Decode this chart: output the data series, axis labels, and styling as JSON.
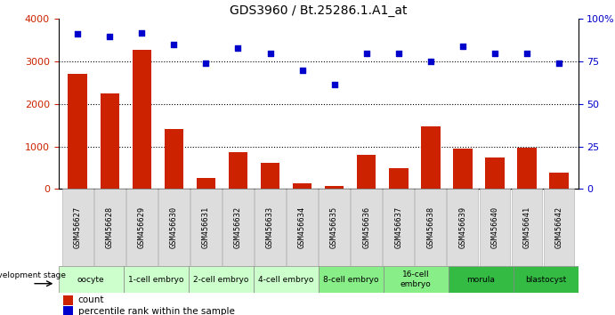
{
  "title": "GDS3960 / Bt.25286.1.A1_at",
  "samples": [
    "GSM456627",
    "GSM456628",
    "GSM456629",
    "GSM456630",
    "GSM456631",
    "GSM456632",
    "GSM456633",
    "GSM456634",
    "GSM456635",
    "GSM456636",
    "GSM456637",
    "GSM456638",
    "GSM456639",
    "GSM456640",
    "GSM456641",
    "GSM456642"
  ],
  "counts": [
    2700,
    2250,
    3280,
    1420,
    260,
    870,
    620,
    140,
    80,
    810,
    490,
    1480,
    940,
    750,
    980,
    390
  ],
  "percentile_vals": [
    91.0,
    89.5,
    91.5,
    85.0,
    74.0,
    83.0,
    79.5,
    70.0,
    61.5,
    79.5,
    79.5,
    75.0,
    84.0,
    79.5,
    79.5,
    74.0
  ],
  "stages": [
    {
      "label": "oocyte",
      "cols": 2,
      "color": "#ccffcc"
    },
    {
      "label": "1-cell embryo",
      "cols": 2,
      "color": "#ccffcc"
    },
    {
      "label": "2-cell embryo",
      "cols": 2,
      "color": "#ccffcc"
    },
    {
      "label": "4-cell embryo",
      "cols": 2,
      "color": "#ccffcc"
    },
    {
      "label": "8-cell embryo",
      "cols": 2,
      "color": "#88ee88"
    },
    {
      "label": "16-cell\nembryo",
      "cols": 2,
      "color": "#88ee88"
    },
    {
      "label": "morula",
      "cols": 2,
      "color": "#33bb44"
    },
    {
      "label": "blastocyst",
      "cols": 2,
      "color": "#33bb44"
    }
  ],
  "bar_color": "#cc2200",
  "dot_color": "#0000cc",
  "ylim_left": [
    0,
    4000
  ],
  "ylim_right": [
    0,
    100
  ],
  "yticks_left": [
    0,
    1000,
    2000,
    3000,
    4000
  ],
  "yticks_right": [
    0,
    25,
    50,
    75,
    100
  ],
  "ytick_labels_right": [
    "0",
    "25",
    "50",
    "75",
    "100%"
  ],
  "grid_vals": [
    1000,
    2000,
    3000
  ],
  "label_color_left": "#cc2200",
  "label_color_right": "#0000cc"
}
